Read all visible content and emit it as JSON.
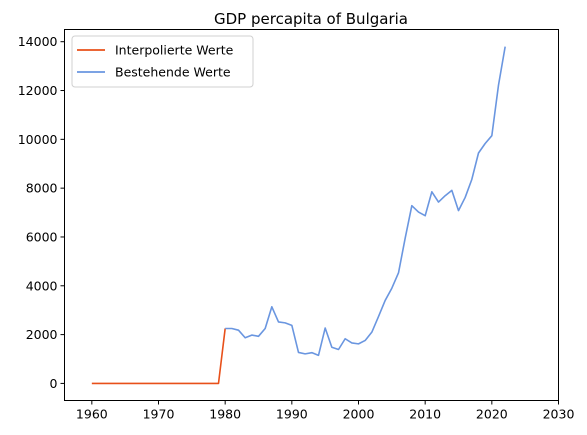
{
  "chart_data": {
    "type": "line",
    "title": "GDP percapita of Bulgaria",
    "xlabel": "",
    "ylabel": "",
    "xlim": [
      1955.9,
      2030
    ],
    "ylim": [
      -700,
      14500
    ],
    "xticks": [
      1960,
      1970,
      1980,
      1990,
      2000,
      2010,
      2020,
      2030
    ],
    "yticks": [
      0,
      2000,
      4000,
      6000,
      8000,
      10000,
      12000,
      14000
    ],
    "grid": false,
    "legend_position": "top-left",
    "series": [
      {
        "name": "Interpolierte Werte",
        "color": "#e8501a",
        "x": [
          1960,
          1961,
          1962,
          1963,
          1964,
          1965,
          1966,
          1967,
          1968,
          1969,
          1970,
          1971,
          1972,
          1973,
          1974,
          1975,
          1976,
          1977,
          1978,
          1979,
          1980
        ],
        "y": [
          0,
          0,
          0,
          0,
          0,
          0,
          0,
          0,
          0,
          0,
          0,
          0,
          0,
          0,
          0,
          0,
          0,
          0,
          0,
          0,
          2250
        ]
      },
      {
        "name": "Bestehende Werte",
        "color": "#6a96e0",
        "x": [
          1980,
          1981,
          1982,
          1983,
          1984,
          1985,
          1986,
          1987,
          1988,
          1989,
          1990,
          1991,
          1992,
          1993,
          1994,
          1995,
          1996,
          1997,
          1998,
          1999,
          2000,
          2001,
          2002,
          2003,
          2004,
          2005,
          2006,
          2007,
          2008,
          2009,
          2010,
          2011,
          2012,
          2013,
          2014,
          2015,
          2016,
          2017,
          2018,
          2019,
          2020,
          2021,
          2022
        ],
        "y": [
          2250,
          2250,
          2180,
          1870,
          1980,
          1930,
          2250,
          3140,
          2520,
          2480,
          2380,
          1270,
          1210,
          1260,
          1150,
          2270,
          1480,
          1390,
          1830,
          1660,
          1620,
          1760,
          2100,
          2740,
          3400,
          3900,
          4530,
          5950,
          7280,
          7020,
          6870,
          7850,
          7430,
          7690,
          7910,
          7080,
          7620,
          8360,
          9440,
          9830,
          10150,
          12220,
          13800
        ]
      }
    ]
  }
}
